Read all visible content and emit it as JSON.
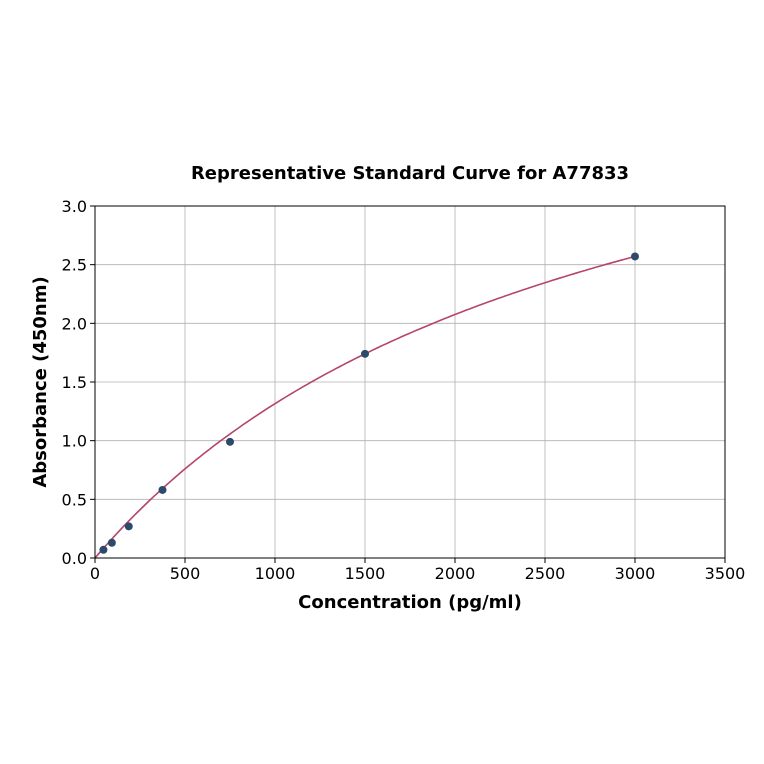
{
  "chart_data": {
    "type": "scatter",
    "title": "Representative Standard Curve for A77833",
    "xlabel": "Concentration (pg/ml)",
    "ylabel": "Absorbance (450nm)",
    "xlim": [
      0,
      3500
    ],
    "ylim": [
      0,
      3.0
    ],
    "xticks": [
      "0",
      "500",
      "1000",
      "1500",
      "2000",
      "2500",
      "3000",
      "3500"
    ],
    "yticks": [
      "0.0",
      "0.5",
      "1.0",
      "1.5",
      "2.0",
      "2.5",
      "3.0"
    ],
    "grid": true,
    "points": [
      {
        "x": 46.875,
        "y": 0.07
      },
      {
        "x": 93.75,
        "y": 0.13
      },
      {
        "x": 187.5,
        "y": 0.27
      },
      {
        "x": 375,
        "y": 0.58
      },
      {
        "x": 750,
        "y": 0.99
      },
      {
        "x": 1500,
        "y": 1.74
      },
      {
        "x": 3000,
        "y": 2.57
      }
    ],
    "fit_curve": {
      "type": "saturating",
      "vmax": 4.914,
      "k": 2736
    },
    "colors": {
      "points": "#2e4a6b",
      "curve": "#b5456b",
      "grid": "#b0b0b0"
    }
  }
}
